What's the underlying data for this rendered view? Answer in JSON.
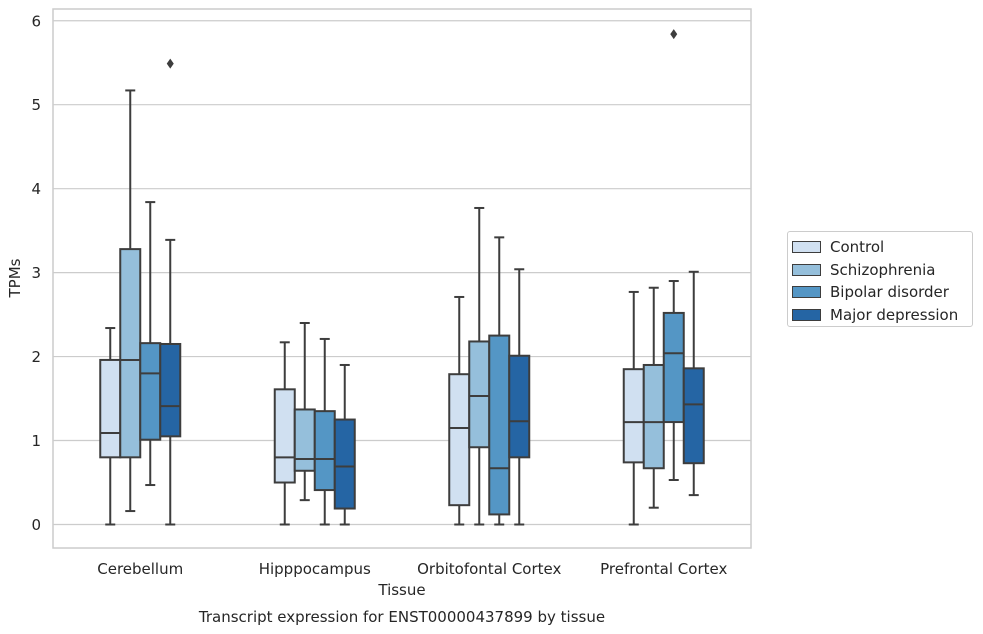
{
  "chart_data": {
    "type": "box",
    "title": "Transcript expression for ENST00000437899 by tissue",
    "xlabel": "Tissue",
    "ylabel": "TPMs",
    "ylim": [
      -0.28,
      6.14
    ],
    "yticks": [
      0,
      1,
      2,
      3,
      4,
      5,
      6
    ],
    "ytick_labels": [
      "0",
      "1",
      "2",
      "3",
      "4",
      "5",
      "6"
    ],
    "grid": "horizontal",
    "legend_position": "right",
    "categories": [
      "Cerebellum",
      "Hipppocampus",
      "Orbitofontal Cortex",
      "Prefrontal Cortex"
    ],
    "series": [
      {
        "name": "Control",
        "color": "#d0e0f1",
        "boxes": [
          {
            "min": 0.0,
            "q1": 0.8,
            "median": 1.09,
            "q3": 1.96,
            "max": 2.34,
            "outliers": []
          },
          {
            "min": 0.0,
            "q1": 0.5,
            "median": 0.8,
            "q3": 1.61,
            "max": 2.17,
            "outliers": []
          },
          {
            "min": 0.0,
            "q1": 0.23,
            "median": 1.15,
            "q3": 1.79,
            "max": 2.71,
            "outliers": []
          },
          {
            "min": 0.0,
            "q1": 0.74,
            "median": 1.22,
            "q3": 1.85,
            "max": 2.77,
            "outliers": []
          }
        ]
      },
      {
        "name": "Schizophrenia",
        "color": "#95bfdb",
        "boxes": [
          {
            "min": 0.16,
            "q1": 0.8,
            "median": 1.96,
            "q3": 3.28,
            "max": 5.17,
            "outliers": []
          },
          {
            "min": 0.29,
            "q1": 0.64,
            "median": 0.78,
            "q3": 1.37,
            "max": 2.4,
            "outliers": []
          },
          {
            "min": 0.0,
            "q1": 0.92,
            "median": 1.53,
            "q3": 2.18,
            "max": 3.77,
            "outliers": []
          },
          {
            "min": 0.2,
            "q1": 0.67,
            "median": 1.22,
            "q3": 1.9,
            "max": 2.82,
            "outliers": []
          }
        ]
      },
      {
        "name": "Bipolar disorder",
        "color": "#5496c5",
        "boxes": [
          {
            "min": 0.47,
            "q1": 1.01,
            "median": 1.8,
            "q3": 2.16,
            "max": 3.84,
            "outliers": []
          },
          {
            "min": 0.0,
            "q1": 0.41,
            "median": 0.78,
            "q3": 1.35,
            "max": 2.21,
            "outliers": []
          },
          {
            "min": 0.0,
            "q1": 0.12,
            "median": 0.67,
            "q3": 2.25,
            "max": 3.42,
            "outliers": []
          },
          {
            "min": 0.53,
            "q1": 1.22,
            "median": 2.04,
            "q3": 2.52,
            "max": 2.9,
            "outliers": [
              5.84
            ]
          }
        ]
      },
      {
        "name": "Major depression",
        "color": "#2565a4",
        "boxes": [
          {
            "min": 0.0,
            "q1": 1.05,
            "median": 1.41,
            "q3": 2.15,
            "max": 3.39,
            "outliers": [
              5.49
            ]
          },
          {
            "min": 0.0,
            "q1": 0.19,
            "median": 0.69,
            "q3": 1.25,
            "max": 1.9,
            "outliers": []
          },
          {
            "min": 0.0,
            "q1": 0.8,
            "median": 1.23,
            "q3": 2.01,
            "max": 3.04,
            "outliers": []
          },
          {
            "min": 0.35,
            "q1": 0.73,
            "median": 1.43,
            "q3": 1.86,
            "max": 3.01,
            "outliers": []
          }
        ]
      }
    ]
  }
}
